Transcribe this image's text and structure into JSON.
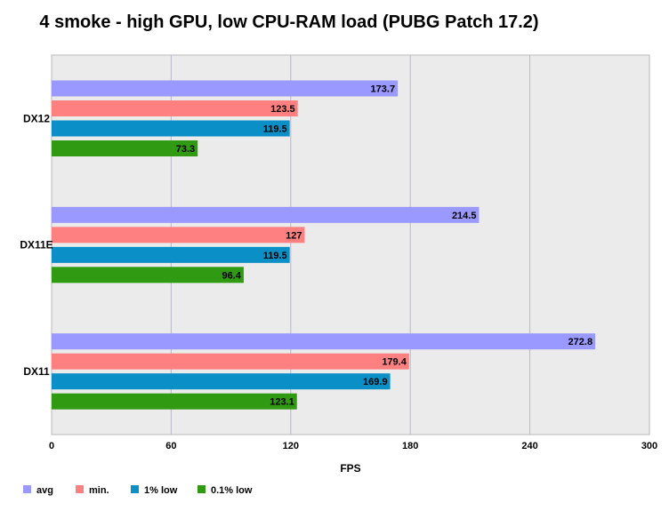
{
  "chart_data": {
    "type": "bar",
    "orientation": "horizontal",
    "title": "4 smoke - high GPU, low CPU-RAM load (PUBG Patch 17.2)",
    "xlabel": "FPS",
    "ylabel": "",
    "xlim": [
      0,
      300
    ],
    "xticks": [
      "0",
      "60",
      "120",
      "180",
      "240",
      "300"
    ],
    "grid": true,
    "legend_position": "bottom-left",
    "categories": [
      "DX12",
      "DX11E",
      "DX11"
    ],
    "series": [
      {
        "name": "avg",
        "color": "#9999ff",
        "values": [
          173.7,
          214.5,
          272.8
        ],
        "labels": [
          "173.7",
          "214.5",
          "272.8"
        ]
      },
      {
        "name": "min.",
        "color": "#ff8080",
        "values": [
          123.5,
          127,
          179.4
        ],
        "labels": [
          "123.5",
          "127",
          "179.4"
        ]
      },
      {
        "name": "1% low",
        "color": "#0a8fc6",
        "values": [
          119.5,
          119.5,
          169.9
        ],
        "labels": [
          "119.5",
          "119.5",
          "169.9"
        ]
      },
      {
        "name": "0.1% low",
        "color": "#2f9a12",
        "values": [
          73.3,
          96.4,
          123.1
        ],
        "labels": [
          "73.3",
          "96.4",
          "123.1"
        ]
      }
    ]
  }
}
